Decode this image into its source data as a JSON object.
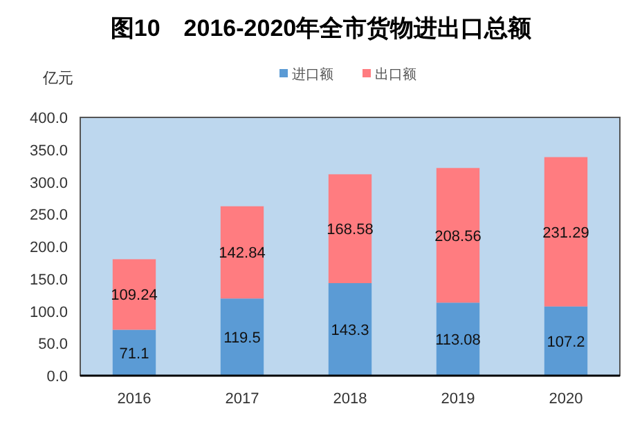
{
  "chart_data": {
    "type": "bar",
    "title": "图10　2016-2020年全市货物进出口总额",
    "ylabel": "亿元",
    "categories": [
      "2016",
      "2017",
      "2018",
      "2019",
      "2020"
    ],
    "series": [
      {
        "name": "进口额",
        "color": "#5b9bd5",
        "values": [
          71.1,
          119.5,
          143.3,
          113.08,
          107.2
        ]
      },
      {
        "name": "出口额",
        "color": "#ff7c80",
        "values": [
          109.24,
          142.84,
          168.58,
          208.56,
          231.29
        ]
      }
    ],
    "stacked": true,
    "data_labels": true,
    "legend": "top",
    "ylim": [
      0,
      400
    ],
    "yticks": [
      {
        "value": 0,
        "label": "0.0"
      },
      {
        "value": 50,
        "label": "50.0"
      },
      {
        "value": 100,
        "label": "100.0"
      },
      {
        "value": 150,
        "label": "150.0"
      },
      {
        "value": 200,
        "label": "200.0"
      },
      {
        "value": 250,
        "label": "250.0"
      },
      {
        "value": 300,
        "label": "300.0"
      },
      {
        "value": 350,
        "label": "350.0"
      },
      {
        "value": 400,
        "label": "400.0"
      }
    ]
  }
}
